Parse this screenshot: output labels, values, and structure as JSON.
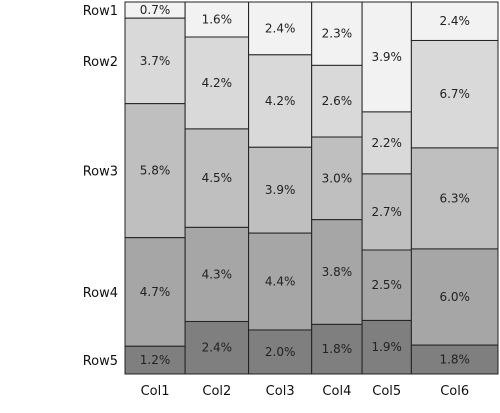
{
  "chart_data": {
    "type": "mosaic",
    "categories": [
      "Col1",
      "Col2",
      "Col3",
      "Col4",
      "Col5",
      "Col6"
    ],
    "rows": [
      "Row1",
      "Row2",
      "Row3",
      "Row4",
      "Row5"
    ],
    "values": [
      [
        "0.7%",
        "1.6%",
        "2.4%",
        "2.3%",
        "3.9%",
        "2.4%"
      ],
      [
        "3.7%",
        "4.2%",
        "4.2%",
        "2.6%",
        "2.2%",
        "6.7%"
      ],
      [
        "5.8%",
        "4.5%",
        "3.9%",
        "3.0%",
        "2.7%",
        "6.3%"
      ],
      [
        "4.7%",
        "4.3%",
        "4.4%",
        "3.8%",
        "2.5%",
        "6.0%"
      ],
      [
        "1.2%",
        "2.4%",
        "2.0%",
        "1.8%",
        "1.9%",
        "1.8%"
      ]
    ],
    "row_colors": [
      "#f2f2f2",
      "#d9d9d9",
      "#bfbfbf",
      "#a6a6a6",
      "#7f7f7f"
    ]
  }
}
